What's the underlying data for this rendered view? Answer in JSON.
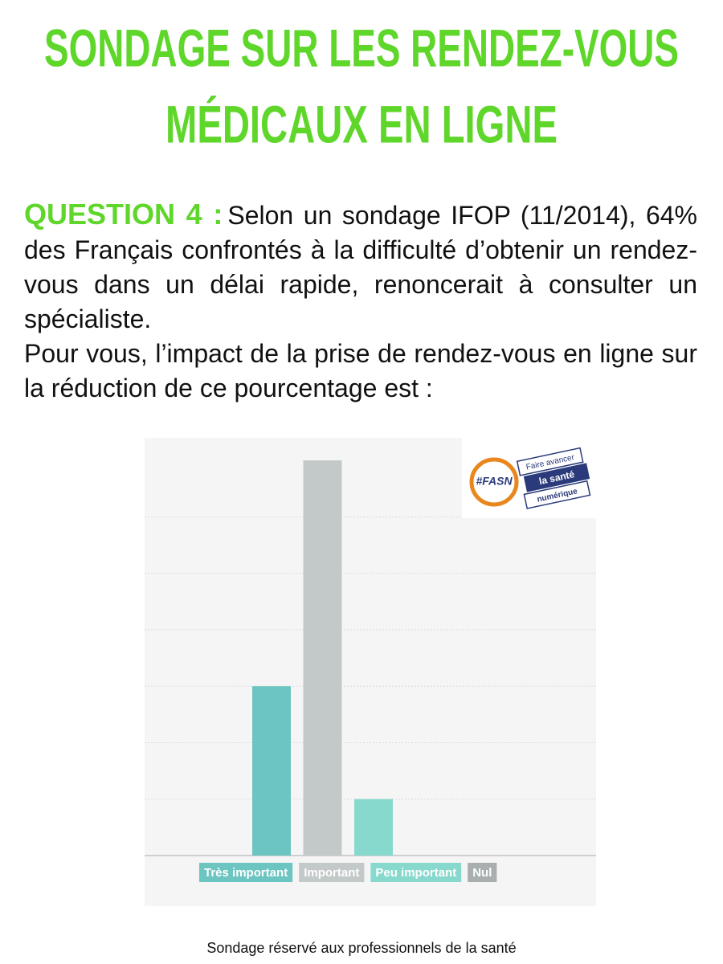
{
  "header": {
    "title_lines": [
      "SONDAGE SUR LES RENDEZ-VOUS",
      "MÉDICAUX EN LIGNE"
    ]
  },
  "question": {
    "label": "QUESTION 4 :",
    "paragraphs": [
      "Selon un sondage IFOP (11/2014), 64% des Français confrontés à la difficulté d’obtenir un rendez-vous dans un délai rapide, renoncerait à consulter un spécialiste.",
      "Pour vous, l’impact de la prise de rendez-vous en ligne sur la réduction de ce pourcentage est :"
    ]
  },
  "logo": {
    "mark": "#FASN",
    "lines": [
      "Faire avancer",
      "la santé",
      "numérique"
    ]
  },
  "chart_data": {
    "type": "bar",
    "categories": [
      "Très important",
      "Important",
      "Peu important",
      "Nul"
    ],
    "values": [
      3,
      7,
      1,
      0
    ],
    "colors": [
      "#6cc5c1",
      "#c3c9c8",
      "#88d9cd",
      "#a9aeae"
    ],
    "ylim": [
      0,
      7.4
    ],
    "yticks": [
      1,
      2,
      3,
      4,
      5,
      6
    ],
    "grid": true
  },
  "footer": {
    "text": "Sondage réservé aux professionnels de la santé"
  }
}
